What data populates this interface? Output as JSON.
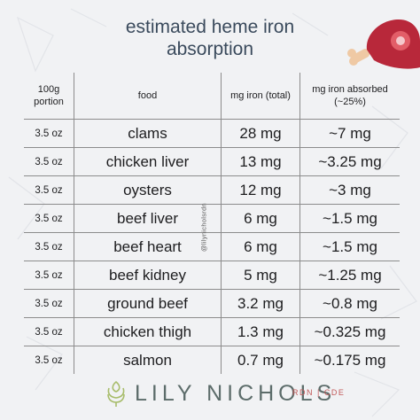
{
  "title": {
    "line1": "estimated heme iron",
    "line2": "absorption"
  },
  "table": {
    "headers": {
      "portion": "100g portion",
      "food": "food",
      "mg_total": "mg iron (total)",
      "mg_absorbed": "mg iron absorbed (~25%)"
    },
    "rows": [
      {
        "portion": "3.5 oz",
        "food": "clams",
        "mg_total": "28 mg",
        "mg_absorbed": "~7 mg"
      },
      {
        "portion": "3.5 oz",
        "food": "chicken liver",
        "mg_total": "13 mg",
        "mg_absorbed": "~3.25 mg"
      },
      {
        "portion": "3.5 oz",
        "food": "oysters",
        "mg_total": "12 mg",
        "mg_absorbed": "~3 mg"
      },
      {
        "portion": "3.5 oz",
        "food": "beef liver",
        "mg_total": "6 mg",
        "mg_absorbed": "~1.5 mg"
      },
      {
        "portion": "3.5 oz",
        "food": "beef heart",
        "mg_total": "6 mg",
        "mg_absorbed": "~1.5 mg"
      },
      {
        "portion": "3.5 oz",
        "food": "beef kidney",
        "mg_total": "5 mg",
        "mg_absorbed": "~1.25 mg"
      },
      {
        "portion": "3.5 oz",
        "food": "ground beef",
        "mg_total": "3.2 mg",
        "mg_absorbed": "~0.8 mg"
      },
      {
        "portion": "3.5 oz",
        "food": "chicken thigh",
        "mg_total": "1.3 mg",
        "mg_absorbed": "~0.325 mg"
      },
      {
        "portion": "3.5 oz",
        "food": "salmon",
        "mg_total": "0.7 mg",
        "mg_absorbed": "~0.175 mg"
      }
    ]
  },
  "watermark": "@lilynicholsrdn",
  "brand": {
    "name": "LILY NICHOLS",
    "credentials": "RDN | CDE",
    "icon": "artichoke-icon"
  },
  "illustration": {
    "icon": "meat-steak-icon"
  },
  "colors": {
    "background": "#f1f2f4",
    "title": "#3a4a5c",
    "brand": "#5c6c6a",
    "credentials": "#c25a5a",
    "meat": "#b8283a",
    "bone": "#efc9a4",
    "logo": "#a7bc6a"
  }
}
